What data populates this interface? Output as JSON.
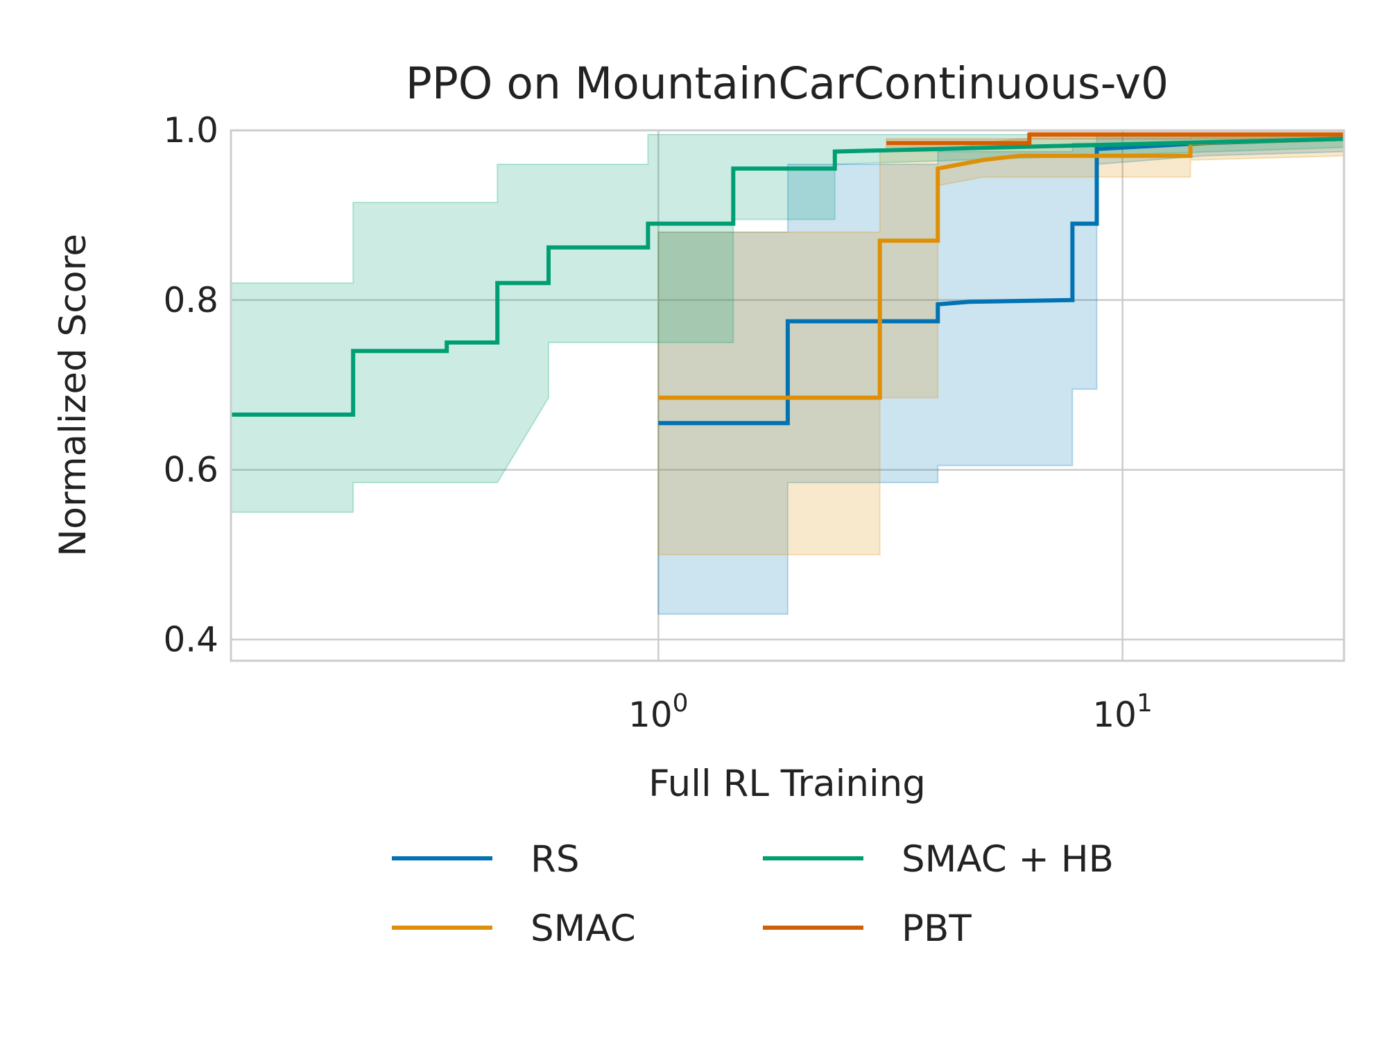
{
  "chart_data": {
    "type": "line",
    "title": "PPO on MountainCarContinuous-v0",
    "xlabel": "Full RL Training",
    "ylabel": "Normalized Score",
    "x_scale": "log",
    "xlim": [
      0.12,
      30
    ],
    "ylim": [
      0.375,
      1.0
    ],
    "x_ticks": [
      {
        "value": 1,
        "base": "10",
        "exp": "0"
      },
      {
        "value": 10,
        "base": "10",
        "exp": "1"
      }
    ],
    "y_ticks": [
      {
        "value": 0.4,
        "label": "0.4"
      },
      {
        "value": 0.6,
        "label": "0.6"
      },
      {
        "value": 0.8,
        "label": "0.8"
      },
      {
        "value": 1.0,
        "label": "1.0"
      }
    ],
    "grid": true,
    "legend_position": "bottom",
    "series": [
      {
        "name": "RS",
        "color": "#0173b2",
        "x": [
          1.0,
          1.9,
          1.9,
          4.0,
          4.0,
          4.7,
          7.8,
          7.8,
          8.8,
          8.8,
          15.0,
          30.0
        ],
        "y": [
          0.655,
          0.655,
          0.775,
          0.775,
          0.795,
          0.798,
          0.8,
          0.89,
          0.89,
          0.978,
          0.985,
          0.99
        ],
        "lower": [
          0.43,
          0.43,
          0.585,
          0.585,
          0.605,
          0.605,
          0.605,
          0.695,
          0.695,
          0.96,
          0.97,
          0.975
        ],
        "upper": [
          0.88,
          0.88,
          0.96,
          0.96,
          0.975,
          0.975,
          0.975,
          0.985,
          0.985,
          0.995,
          0.995,
          0.995
        ]
      },
      {
        "name": "SMAC",
        "color": "#de8f05",
        "x": [
          1.0,
          3.0,
          3.0,
          4.0,
          4.0,
          5.0,
          6.0,
          14.0,
          14.0,
          30.0
        ],
        "y": [
          0.685,
          0.685,
          0.87,
          0.87,
          0.955,
          0.965,
          0.97,
          0.97,
          0.985,
          0.99
        ],
        "lower": [
          0.5,
          0.5,
          0.685,
          0.685,
          0.935,
          0.945,
          0.945,
          0.945,
          0.965,
          0.97
        ],
        "upper": [
          0.88,
          0.88,
          0.975,
          0.975,
          0.975,
          0.985,
          0.99,
          0.99,
          0.995,
          0.995
        ]
      },
      {
        "name": "SMAC + HB",
        "color": "#029e73",
        "x": [
          0.12,
          0.22,
          0.22,
          0.35,
          0.35,
          0.45,
          0.45,
          0.58,
          0.58,
          0.95,
          0.95,
          1.45,
          1.45,
          2.4,
          2.4,
          30.0
        ],
        "y": [
          0.665,
          0.665,
          0.74,
          0.74,
          0.75,
          0.75,
          0.82,
          0.82,
          0.862,
          0.862,
          0.89,
          0.89,
          0.955,
          0.955,
          0.975,
          0.99
        ],
        "lower": [
          0.55,
          0.55,
          0.585,
          0.585,
          0.585,
          0.585,
          0.585,
          0.685,
          0.75,
          0.75,
          0.75,
          0.75,
          0.895,
          0.895,
          0.96,
          0.98
        ],
        "upper": [
          0.82,
          0.82,
          0.915,
          0.915,
          0.915,
          0.915,
          0.96,
          0.96,
          0.96,
          0.96,
          0.995,
          0.995,
          0.995,
          0.995,
          0.995,
          0.995
        ]
      },
      {
        "name": "PBT",
        "color": "#d55e00",
        "x": [
          3.1,
          6.3,
          6.3,
          30.0
        ],
        "y": [
          0.985,
          0.985,
          0.995,
          0.995
        ],
        "lower": [
          0.98,
          0.98,
          0.99,
          0.99
        ],
        "upper": [
          0.99,
          0.99,
          0.998,
          0.998
        ]
      }
    ]
  }
}
